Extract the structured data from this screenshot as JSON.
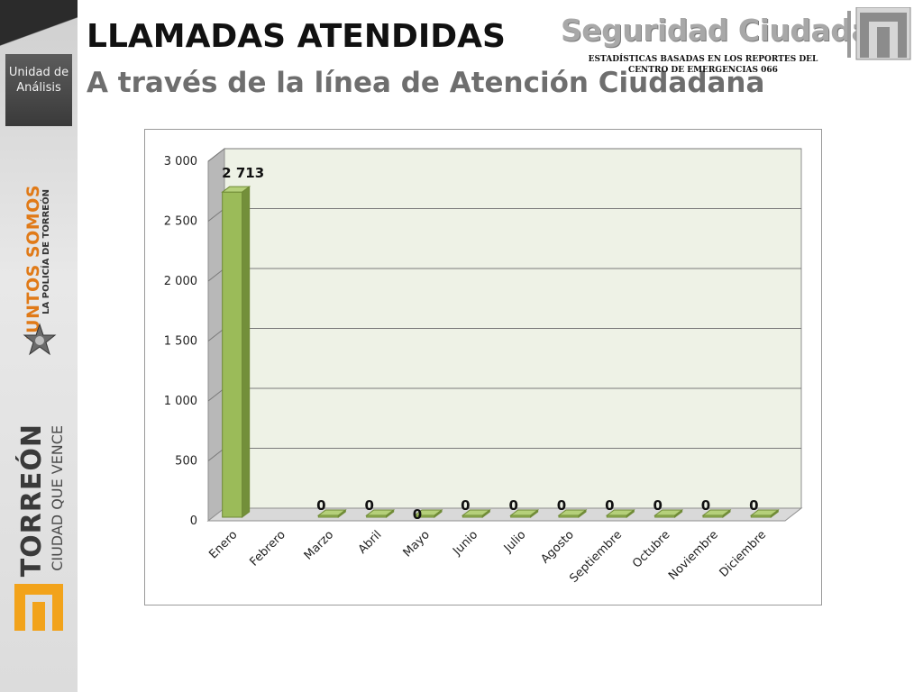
{
  "sidebar": {
    "unit_label_line1": "Unidad de",
    "unit_label_line2": "Análisis",
    "juntos_main": "JUNTOS SOMOS",
    "juntos_sub": "LA POLICÍA DE TORREÓN",
    "torreon_main": "TORREÓN",
    "torreon_sub": "CIUDAD QUE VENCE",
    "badge_icon": "police-star-badge-icon",
    "logo_icon": "torreon-logo-icon",
    "accent_color": "#f2a31b"
  },
  "header": {
    "title": "LLAMADAS ATENDIDAS",
    "subtitle": "A través de la línea de Atención Ciudadana",
    "brand": "Seguridad Ciudadana",
    "brand_note": "ESTADÍSTICAS BASADAS EN LOS REPORTES DEL CENTRO DE EMERGENCIAS 066",
    "brand_icon": "seguridad-ciudadana-logo-icon"
  },
  "chart_data": {
    "type": "bar",
    "categories": [
      "Enero",
      "Febrero",
      "Marzo",
      "Abril",
      "Mayo",
      "Junio",
      "Julio",
      "Agosto",
      "Septiembre",
      "Octubre",
      "Noviembre",
      "Diciembre"
    ],
    "values": [
      2713,
      null,
      0,
      0,
      0,
      0,
      0,
      0,
      0,
      0,
      0,
      0
    ],
    "data_labels": [
      "2 713",
      "",
      "0",
      "0",
      "0",
      "0",
      "0",
      "0",
      "0",
      "0",
      "0",
      "0"
    ],
    "y_ticks": [
      0,
      500,
      1000,
      1500,
      2000,
      2500,
      3000
    ],
    "y_tick_labels": [
      "0",
      "500",
      "1 000",
      "1 500",
      "2 000",
      "2 500",
      "3 000"
    ],
    "ylim": [
      0,
      3000
    ],
    "grid": true,
    "style": "3d",
    "bar_color": "#9bbb59",
    "plot_background": "#eef2e6"
  }
}
